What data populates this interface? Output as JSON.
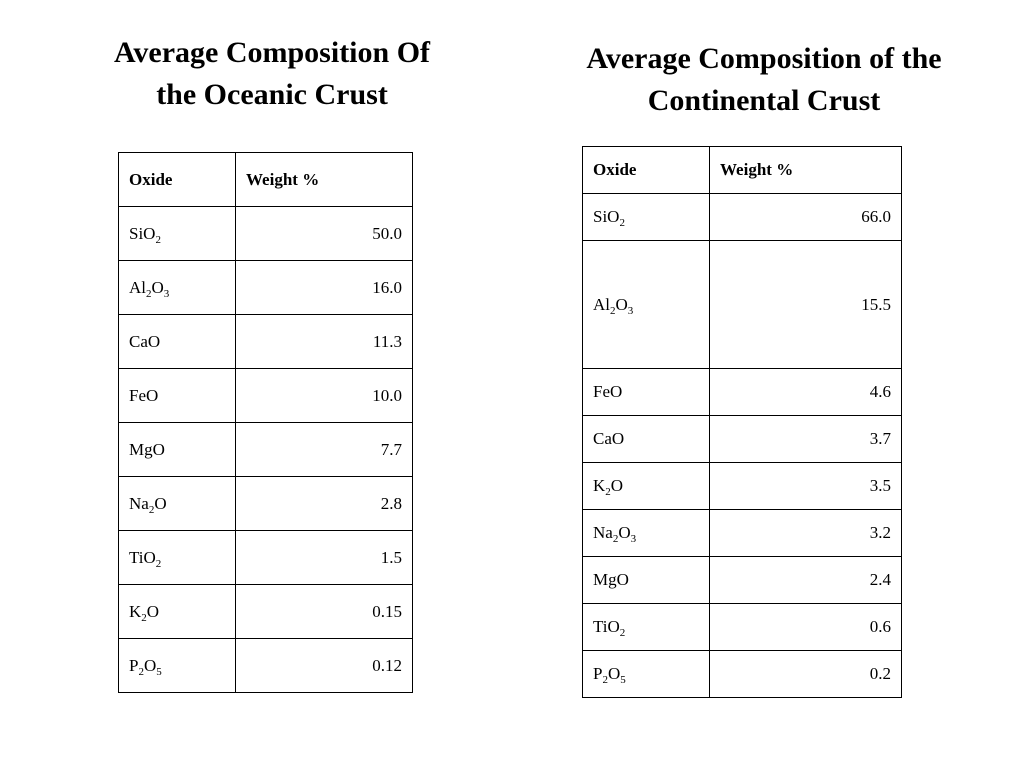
{
  "oceanic": {
    "title_line1": "Average Composition Of",
    "title_line2": "the Oceanic Crust",
    "header": {
      "oxide": "Oxide",
      "weight": "Weight %"
    },
    "rows": [
      {
        "parts": [
          "SiO",
          "2"
        ],
        "value": "50.0"
      },
      {
        "parts": [
          "Al",
          "2",
          "O",
          "3"
        ],
        "value": "16.0"
      },
      {
        "parts": [
          "CaO"
        ],
        "value": "11.3"
      },
      {
        "parts": [
          "FeO"
        ],
        "value": "10.0"
      },
      {
        "parts": [
          "MgO"
        ],
        "value": "7.7"
      },
      {
        "parts": [
          "Na",
          "2",
          "O"
        ],
        "value": "2.8"
      },
      {
        "parts": [
          "TiO",
          "2"
        ],
        "value": "1.5"
      },
      {
        "parts": [
          "K",
          "2",
          "O"
        ],
        "value": "0.15"
      },
      {
        "parts": [
          "P",
          "2",
          "O",
          "5"
        ],
        "value": "0.12"
      }
    ]
  },
  "continental": {
    "title_line1": "Average Composition of the",
    "title_line2": "Continental Crust",
    "header": {
      "oxide": "Oxide",
      "weight": "Weight %"
    },
    "rows": [
      {
        "parts": [
          "SiO",
          "2"
        ],
        "value": "66.0"
      },
      {
        "parts": [
          "Al",
          "2",
          "O",
          "3"
        ],
        "value": "15.5"
      },
      {
        "parts": [
          "FeO"
        ],
        "value": "4.6"
      },
      {
        "parts": [
          "CaO"
        ],
        "value": "3.7"
      },
      {
        "parts": [
          "K",
          "2",
          "O"
        ],
        "value": "3.5"
      },
      {
        "parts": [
          "Na",
          "2",
          "O",
          "3"
        ],
        "value": "3.2"
      },
      {
        "parts": [
          "MgO"
        ],
        "value": "2.4"
      },
      {
        "parts": [
          "TiO",
          "2"
        ],
        "value": "0.6"
      },
      {
        "parts": [
          "P",
          "2",
          "O",
          "5"
        ],
        "value": "0.2"
      }
    ]
  }
}
